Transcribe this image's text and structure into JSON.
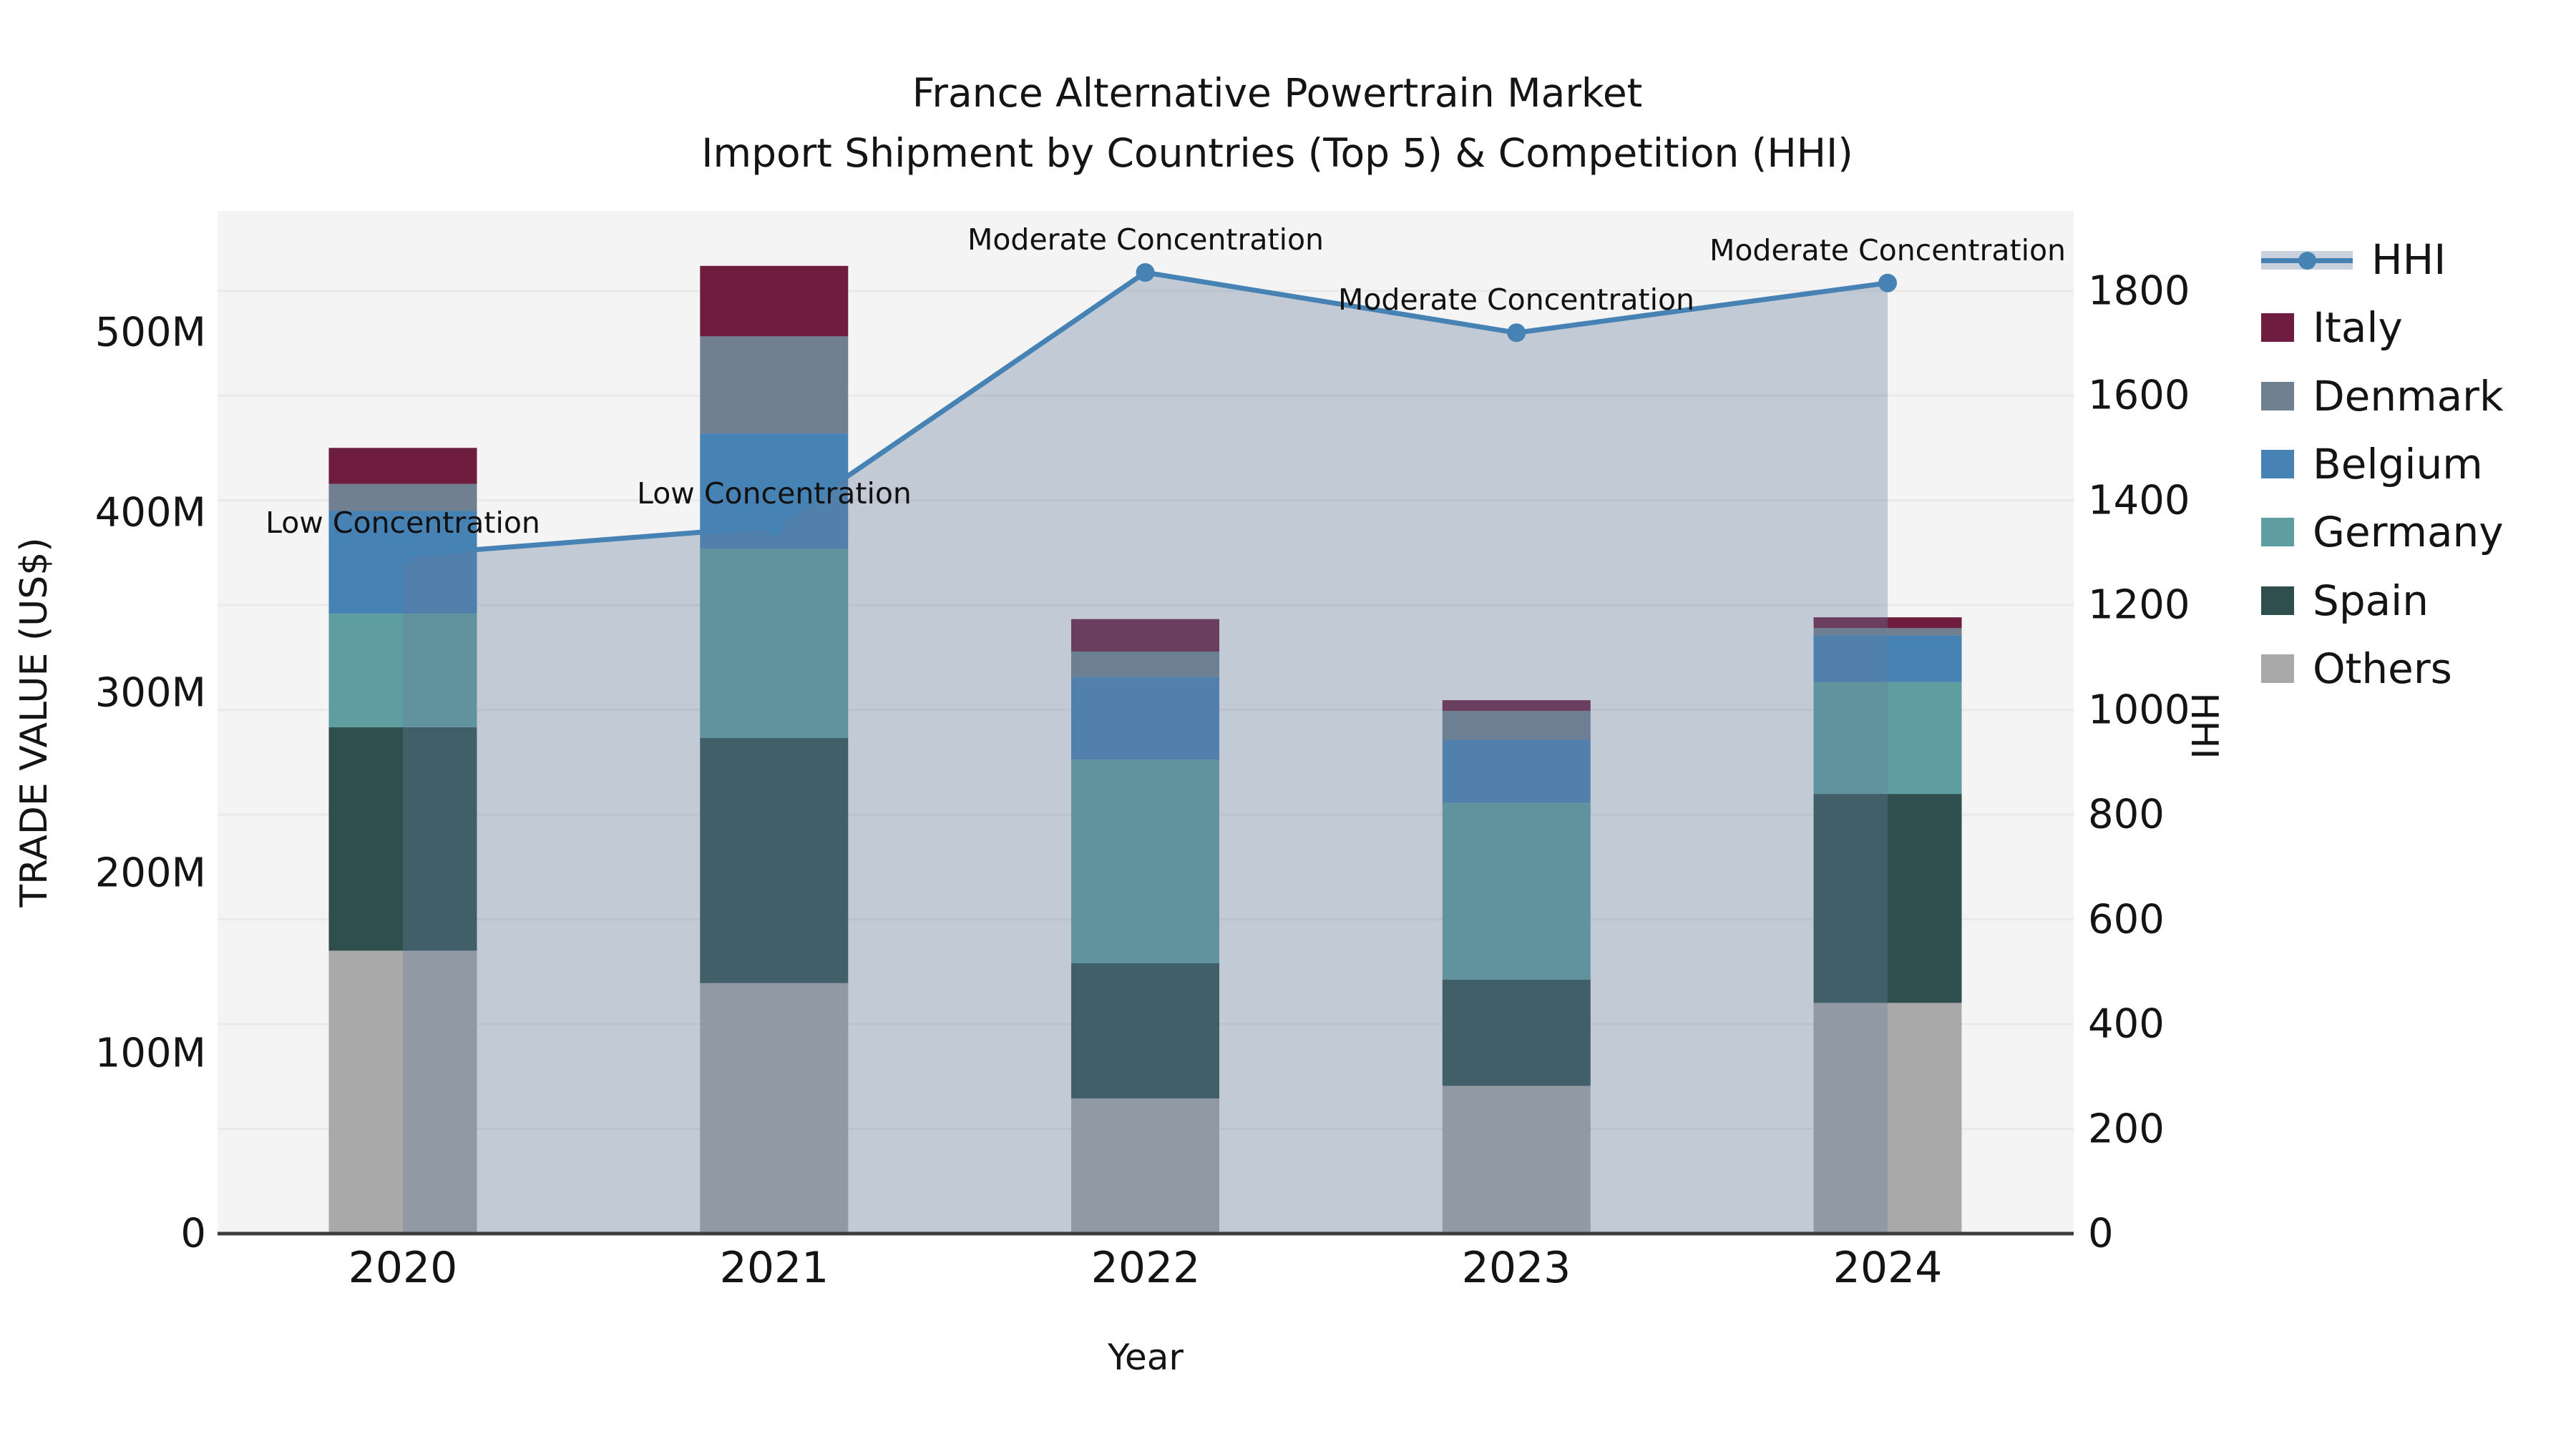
{
  "title": {
    "line1": "France Alternative Powertrain Market",
    "line2": "Import Shipment by Countries (Top 5) & Competition (HHI)"
  },
  "axes": {
    "x": {
      "label": "Year",
      "tick_labels": [
        "2020",
        "2021",
        "2022",
        "2023",
        "2024"
      ]
    },
    "y_left": {
      "label": "TRADE VALUE (US$)",
      "tick_labels": [
        "0",
        "100M",
        "200M",
        "300M",
        "400M",
        "500M"
      ]
    },
    "y_right": {
      "label": "HHI",
      "tick_labels": [
        "0",
        "200",
        "400",
        "600",
        "800",
        "1000",
        "1200",
        "1400",
        "1600",
        "1800"
      ]
    }
  },
  "legend": {
    "items": [
      {
        "label": "HHI",
        "type": "line",
        "color": "#4682B4"
      },
      {
        "label": "Italy",
        "type": "patch",
        "color": "#6E1D3E"
      },
      {
        "label": "Denmark",
        "type": "patch",
        "color": "#708090"
      },
      {
        "label": "Belgium",
        "type": "patch",
        "color": "#4682B4"
      },
      {
        "label": "Germany",
        "type": "patch",
        "color": "#5F9EA0"
      },
      {
        "label": "Spain",
        "type": "patch",
        "color": "#2F4F4F"
      },
      {
        "label": "Others",
        "type": "patch",
        "color": "#A9A9A9"
      }
    ]
  },
  "annotations": [
    {
      "category": "2020",
      "text": "Low Concentration"
    },
    {
      "category": "2021",
      "text": "Low Concentration"
    },
    {
      "category": "2022",
      "text": "Moderate Concentration"
    },
    {
      "category": "2023",
      "text": "Moderate Concentration"
    },
    {
      "category": "2024",
      "text": "Moderate Concentration"
    }
  ],
  "chart_data": {
    "type": "bar+line",
    "categories": [
      "2020",
      "2021",
      "2022",
      "2023",
      "2024"
    ],
    "bar_unit": "US$ millions (trade value)",
    "bar_series": [
      {
        "name": "Italy",
        "color": "#6E1D3E",
        "values": [
          20,
          39,
          18,
          6,
          6
        ]
      },
      {
        "name": "Denmark",
        "color": "#708090",
        "values": [
          15,
          54,
          14,
          16,
          4
        ]
      },
      {
        "name": "Belgium",
        "color": "#4682B4",
        "values": [
          57,
          64,
          46,
          35,
          26
        ]
      },
      {
        "name": "Germany",
        "color": "#5F9EA0",
        "values": [
          63,
          105,
          113,
          98,
          62
        ]
      },
      {
        "name": "Spain",
        "color": "#2F4F4F",
        "values": [
          124,
          136,
          75,
          59,
          116
        ]
      },
      {
        "name": "Others",
        "color": "#A9A9A9",
        "values": [
          157,
          139,
          75,
          82,
          128
        ]
      }
    ],
    "stack_order_bottom_to_top": [
      "Others",
      "Spain",
      "Germany",
      "Belgium",
      "Denmark",
      "Italy"
    ],
    "bar_totals": [
      436,
      537,
      341,
      296,
      342
    ],
    "line_series": {
      "name": "HHI",
      "axis": "right",
      "color": "#4682B4",
      "area_fill": true,
      "values": [
        1295,
        1350,
        1835,
        1720,
        1815
      ]
    },
    "y_left_range": [
      0,
      567
    ],
    "y_right_range": [
      0,
      1952
    ],
    "xlabel": "Year",
    "ylabel_left": "TRADE VALUE (US$)",
    "ylabel_right": "HHI",
    "grid": "horizontal gridlines aligned to right-axis ticks (every 200 HHI)",
    "legend_position": "right"
  },
  "style": {
    "plot_bg": "#f4f4f4",
    "gridline": "#e9e9e9",
    "axis_line": "#3d3d3d",
    "area_fill": "rgba(100,125,155,0.35)",
    "text": "#141414"
  }
}
